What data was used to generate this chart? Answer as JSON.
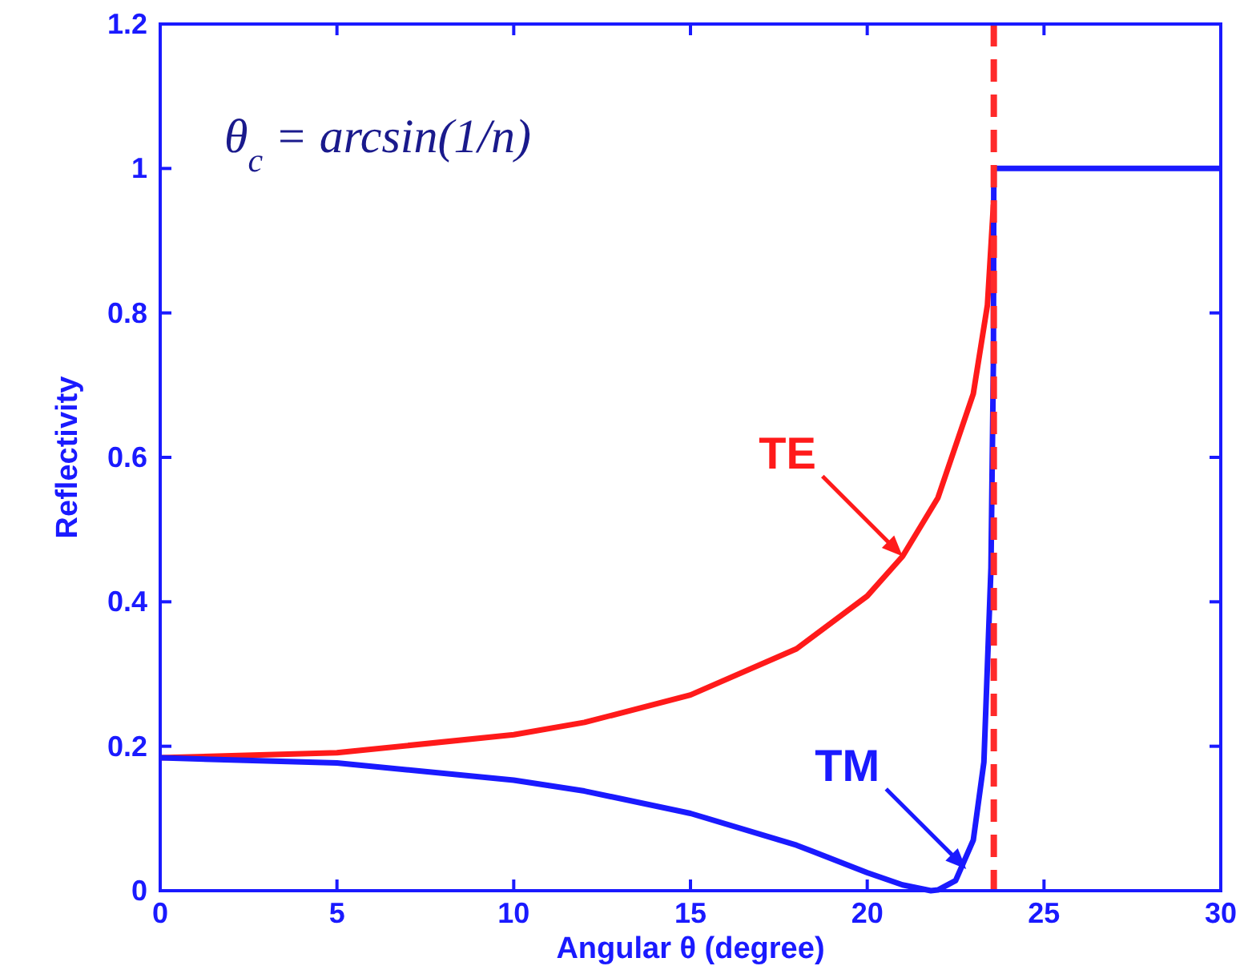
{
  "chart_data": {
    "type": "line",
    "xlabel": "Angular θ (degree)",
    "ylabel": "Reflectivity",
    "xlim": [
      0,
      30
    ],
    "ylim": [
      0,
      1.2
    ],
    "xticks": [
      0,
      5,
      10,
      15,
      20,
      25,
      30
    ],
    "yticks": [
      0,
      0.2,
      0.4,
      0.6,
      0.8,
      1,
      1.2
    ],
    "grid": false,
    "line_style": "solid",
    "series": [
      {
        "color": "#ff1a1a",
        "x": [
          0,
          5,
          10,
          12,
          15,
          18,
          20,
          21,
          22,
          23,
          23.4,
          23.57
        ],
        "values": [
          0.184,
          0.191,
          0.216,
          0.233,
          0.271,
          0.335,
          0.408,
          0.463,
          0.544,
          0.688,
          0.811,
          0.95
        ]
      },
      {
        "color": "#1a1aff",
        "x": [
          0,
          5,
          10,
          12,
          15,
          18,
          20,
          21,
          21.8,
          22,
          22.5,
          23,
          23.3,
          23.5,
          23.57,
          23.58,
          30
        ],
        "values": [
          0.184,
          0.177,
          0.153,
          0.138,
          0.107,
          0.063,
          0.025,
          0.008,
          0,
          0.001,
          0.014,
          0.07,
          0.178,
          0.447,
          0.736,
          1,
          1
        ]
      }
    ],
    "ref_lines": [
      {
        "axis": "x",
        "value": 23.58,
        "color": "#ff2a2a",
        "line_style": "dashed"
      }
    ],
    "annotations": [
      "θ$_{c}$ = arcsin(1/n)",
      {
        "text": "TE",
        "x": 21,
        "y": 0.463
      },
      {
        "text": "TM",
        "x": 22.8,
        "y": 0.03
      }
    ]
  }
}
